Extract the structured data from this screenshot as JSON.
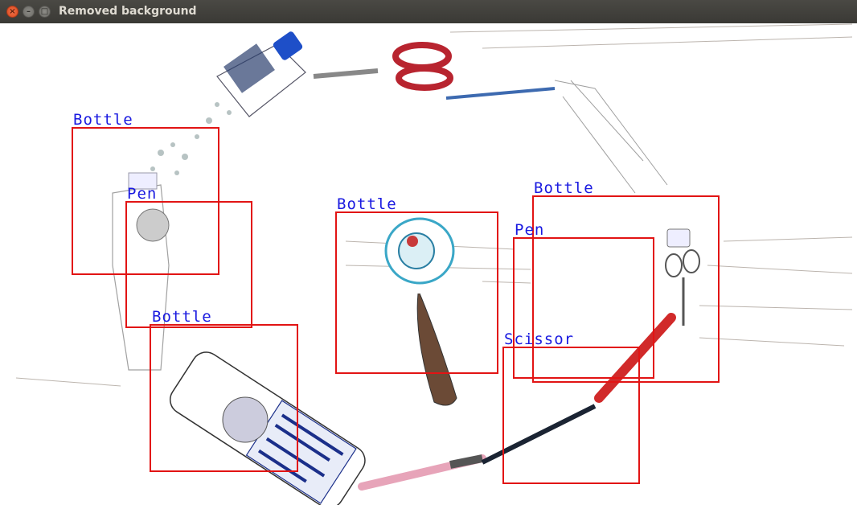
{
  "window": {
    "title": "Removed background",
    "close_glyph": "×",
    "minimize_glyph": "–",
    "maximize_glyph": "□"
  },
  "colors": {
    "box": "#e21414",
    "label": "#1a1ae0"
  },
  "detections": [
    {
      "label": "Bottle"
    },
    {
      "label": "Pen"
    },
    {
      "label": "Bottle"
    },
    {
      "label": "Bottle"
    },
    {
      "label": "Bottle"
    },
    {
      "label": "Pen"
    },
    {
      "label": "Scissor"
    }
  ]
}
